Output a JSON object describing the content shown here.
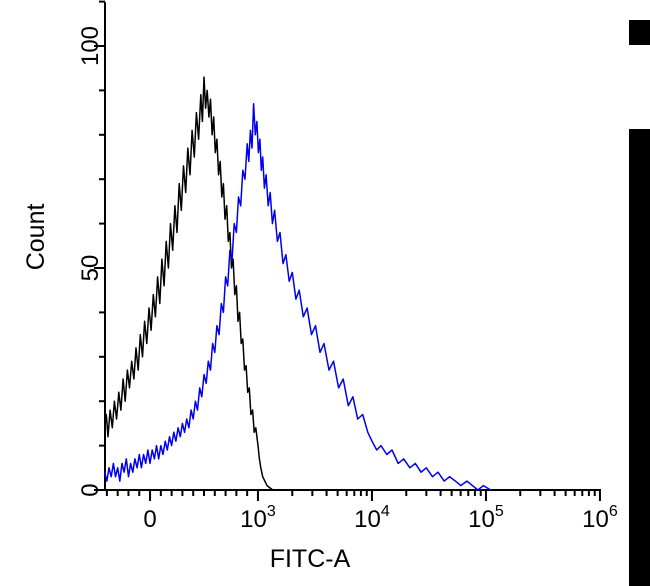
{
  "chart_data": {
    "type": "line",
    "subtype": "flow-cytometry-histogram-overlay",
    "title": "",
    "xlabel": "FITC-A",
    "ylabel": "Count",
    "background": "#ffffff",
    "axis_color": "#000000",
    "legend": "none",
    "grid": false,
    "x_axis": {
      "label": "FITC-A",
      "scale": {
        "type": "biexponential",
        "linear_max": 1000,
        "zero_frac": 0.091,
        "linear_end_frac": 0.309,
        "frac_per_decade": 0.2303
      },
      "major_ticks": [
        {
          "value": 0,
          "label": "0"
        },
        {
          "value": 1000,
          "base": "10",
          "exp": "3"
        },
        {
          "value": 10000,
          "base": "10",
          "exp": "4"
        },
        {
          "value": 100000,
          "base": "10",
          "exp": "5"
        },
        {
          "value": 1000000,
          "base": "10",
          "exp": "6"
        }
      ],
      "minor_ticks": [
        -400,
        -300,
        -200,
        -100,
        100,
        200,
        300,
        400,
        500,
        600,
        700,
        800,
        900,
        2000,
        3000,
        4000,
        5000,
        6000,
        7000,
        8000,
        9000,
        20000,
        30000,
        40000,
        50000,
        60000,
        70000,
        80000,
        90000,
        200000,
        300000,
        400000,
        500000,
        600000,
        700000,
        800000,
        900000
      ]
    },
    "y_axis": {
      "label": "Count",
      "range": [
        0,
        110
      ],
      "major_ticks": [
        {
          "value": 0,
          "label": "0"
        },
        {
          "value": 50,
          "label": "50"
        },
        {
          "value": 100,
          "label": "100"
        }
      ],
      "minor_ticks": [
        10,
        20,
        30,
        40,
        60,
        70,
        80,
        90,
        110
      ]
    },
    "series": [
      {
        "name": "black-trace",
        "color": "#000000",
        "points": [
          [
            -420,
            14
          ],
          [
            -405,
            17
          ],
          [
            -390,
            12
          ],
          [
            -370,
            18
          ],
          [
            -350,
            14
          ],
          [
            -330,
            20
          ],
          [
            -310,
            16
          ],
          [
            -290,
            22
          ],
          [
            -270,
            18
          ],
          [
            -250,
            25
          ],
          [
            -230,
            20
          ],
          [
            -210,
            27
          ],
          [
            -190,
            23
          ],
          [
            -170,
            29
          ],
          [
            -150,
            25
          ],
          [
            -130,
            32
          ],
          [
            -110,
            27
          ],
          [
            -90,
            35
          ],
          [
            -70,
            30
          ],
          [
            -50,
            38
          ],
          [
            -30,
            33
          ],
          [
            -10,
            41
          ],
          [
            10,
            36
          ],
          [
            30,
            44
          ],
          [
            50,
            39
          ],
          [
            70,
            48
          ],
          [
            90,
            42
          ],
          [
            110,
            52
          ],
          [
            130,
            46
          ],
          [
            150,
            56
          ],
          [
            170,
            50
          ],
          [
            190,
            60
          ],
          [
            210,
            54
          ],
          [
            230,
            64
          ],
          [
            250,
            58
          ],
          [
            270,
            69
          ],
          [
            290,
            63
          ],
          [
            310,
            73
          ],
          [
            330,
            67
          ],
          [
            350,
            77
          ],
          [
            370,
            71
          ],
          [
            390,
            81
          ],
          [
            410,
            75
          ],
          [
            430,
            85
          ],
          [
            450,
            79
          ],
          [
            470,
            89
          ],
          [
            485,
            83
          ],
          [
            500,
            93
          ],
          [
            515,
            86
          ],
          [
            530,
            90
          ],
          [
            545,
            84
          ],
          [
            560,
            88
          ],
          [
            575,
            80
          ],
          [
            590,
            84
          ],
          [
            605,
            76
          ],
          [
            620,
            79
          ],
          [
            635,
            71
          ],
          [
            650,
            74
          ],
          [
            665,
            66
          ],
          [
            680,
            69
          ],
          [
            695,
            61
          ],
          [
            710,
            64
          ],
          [
            725,
            56
          ],
          [
            740,
            58
          ],
          [
            755,
            50
          ],
          [
            770,
            52
          ],
          [
            785,
            44
          ],
          [
            800,
            46
          ],
          [
            815,
            38
          ],
          [
            830,
            40
          ],
          [
            845,
            33
          ],
          [
            860,
            34
          ],
          [
            875,
            27
          ],
          [
            890,
            28
          ],
          [
            905,
            22
          ],
          [
            920,
            23
          ],
          [
            935,
            17
          ],
          [
            950,
            18
          ],
          [
            965,
            13
          ],
          [
            980,
            14
          ],
          [
            1000,
            10
          ],
          [
            1030,
            7
          ],
          [
            1060,
            5
          ],
          [
            1100,
            3
          ],
          [
            1200,
            1
          ],
          [
            1350,
            0
          ],
          [
            1600,
            0
          ],
          [
            2100,
            0
          ]
        ]
      },
      {
        "name": "blue-trace",
        "color": "#0000ee",
        "points": [
          [
            -420,
            4
          ],
          [
            -400,
            2
          ],
          [
            -380,
            5
          ],
          [
            -360,
            3
          ],
          [
            -340,
            6
          ],
          [
            -320,
            3
          ],
          [
            -300,
            5
          ],
          [
            -280,
            2
          ],
          [
            -260,
            6
          ],
          [
            -240,
            4
          ],
          [
            -220,
            7
          ],
          [
            -200,
            3
          ],
          [
            -180,
            6
          ],
          [
            -160,
            4
          ],
          [
            -140,
            7
          ],
          [
            -120,
            5
          ],
          [
            -100,
            8
          ],
          [
            -80,
            5
          ],
          [
            -60,
            8
          ],
          [
            -40,
            6
          ],
          [
            -20,
            9
          ],
          [
            0,
            6
          ],
          [
            20,
            9
          ],
          [
            40,
            7
          ],
          [
            60,
            10
          ],
          [
            80,
            7
          ],
          [
            100,
            10
          ],
          [
            120,
            8
          ],
          [
            140,
            11
          ],
          [
            160,
            9
          ],
          [
            180,
            12
          ],
          [
            200,
            10
          ],
          [
            220,
            13
          ],
          [
            240,
            11
          ],
          [
            260,
            14
          ],
          [
            280,
            12
          ],
          [
            300,
            15
          ],
          [
            320,
            13
          ],
          [
            340,
            16
          ],
          [
            360,
            14
          ],
          [
            380,
            18
          ],
          [
            400,
            16
          ],
          [
            420,
            20
          ],
          [
            440,
            18
          ],
          [
            460,
            23
          ],
          [
            480,
            21
          ],
          [
            500,
            26
          ],
          [
            520,
            24
          ],
          [
            540,
            29
          ],
          [
            560,
            27
          ],
          [
            580,
            33
          ],
          [
            600,
            31
          ],
          [
            620,
            37
          ],
          [
            640,
            35
          ],
          [
            660,
            42
          ],
          [
            680,
            40
          ],
          [
            700,
            48
          ],
          [
            720,
            46
          ],
          [
            740,
            54
          ],
          [
            760,
            52
          ],
          [
            780,
            60
          ],
          [
            800,
            58
          ],
          [
            820,
            66
          ],
          [
            840,
            64
          ],
          [
            860,
            72
          ],
          [
            880,
            70
          ],
          [
            900,
            78
          ],
          [
            915,
            74
          ],
          [
            930,
            81
          ],
          [
            945,
            77
          ],
          [
            960,
            87
          ],
          [
            975,
            80
          ],
          [
            990,
            83
          ],
          [
            1010,
            76
          ],
          [
            1040,
            79
          ],
          [
            1070,
            72
          ],
          [
            1100,
            75
          ],
          [
            1140,
            68
          ],
          [
            1180,
            71
          ],
          [
            1230,
            64
          ],
          [
            1280,
            67
          ],
          [
            1340,
            60
          ],
          [
            1400,
            63
          ],
          [
            1480,
            56
          ],
          [
            1560,
            58
          ],
          [
            1660,
            51
          ],
          [
            1760,
            53
          ],
          [
            1880,
            47
          ],
          [
            2000,
            49
          ],
          [
            2150,
            43
          ],
          [
            2300,
            45
          ],
          [
            2500,
            39
          ],
          [
            2700,
            41
          ],
          [
            2950,
            35
          ],
          [
            3200,
            37
          ],
          [
            3500,
            31
          ],
          [
            3800,
            33
          ],
          [
            4200,
            27
          ],
          [
            4600,
            29
          ],
          [
            5100,
            23
          ],
          [
            5600,
            25
          ],
          [
            6200,
            19
          ],
          [
            6800,
            21
          ],
          [
            7500,
            16
          ],
          [
            8300,
            17
          ],
          [
            9200,
            13
          ],
          [
            10000,
            11
          ],
          [
            11000,
            9
          ],
          [
            12000,
            10
          ],
          [
            13500,
            8
          ],
          [
            15000,
            9
          ],
          [
            17000,
            6
          ],
          [
            19000,
            7
          ],
          [
            21500,
            5
          ],
          [
            24000,
            6
          ],
          [
            27000,
            4
          ],
          [
            30000,
            5
          ],
          [
            34000,
            3
          ],
          [
            38000,
            4
          ],
          [
            43000,
            2
          ],
          [
            48000,
            3
          ],
          [
            54000,
            2
          ],
          [
            60000,
            1
          ],
          [
            68000,
            2
          ],
          [
            76000,
            1
          ],
          [
            85000,
            0
          ],
          [
            95000,
            1
          ],
          [
            110000,
            0
          ]
        ]
      }
    ]
  },
  "artifacts": {
    "top_right_bar_color": "#000000",
    "right_bar_color": "#000000"
  }
}
